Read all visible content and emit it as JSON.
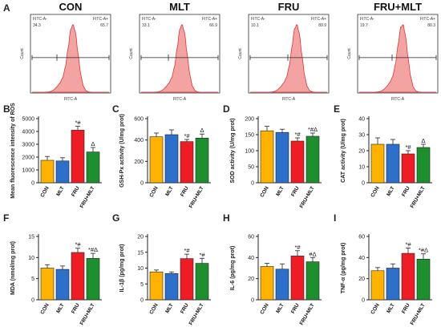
{
  "figure": {
    "colors": {
      "CON": "#FFB300",
      "MLT": "#2E6FC9",
      "FRU": "#EE1C25",
      "FRU+MLT": "#1E8F2E",
      "flow_fill": "#F4A3A3",
      "flow_line": "#D93636"
    },
    "categories": [
      "CON",
      "MLT",
      "FRU",
      "FRU+MLT"
    ]
  },
  "flow_panels": {
    "letter": "A",
    "x_axis_label": "FITC-A",
    "y_axis_label": "Count",
    "neg_label": "FITC-A-",
    "pos_label": "FITC-A+",
    "groups": [
      {
        "title": "CON",
        "neg_value": "34.3",
        "pos_value": "65.7"
      },
      {
        "title": "MLT",
        "neg_value": "33.1",
        "pos_value": "66.9"
      },
      {
        "title": "FRU",
        "neg_value": "10.1",
        "pos_value": "89.9"
      },
      {
        "title": "FRU+MLT",
        "neg_value": "19.7",
        "pos_value": "80.3"
      }
    ]
  },
  "chart_data": [
    {
      "panel": "B",
      "type": "bar",
      "ylabel": "Mean fluorescence intensity of ROS",
      "categories": [
        "CON",
        "MLT",
        "FRU",
        "FRU+MLT"
      ],
      "values": [
        1750,
        1700,
        4100,
        2400
      ],
      "errors": [
        300,
        250,
        300,
        350
      ],
      "annotations": [
        "",
        "",
        "*#",
        "Δ"
      ],
      "ylim": [
        0,
        5000
      ],
      "yticks": [
        0,
        1000,
        2000,
        3000,
        4000,
        5000
      ]
    },
    {
      "panel": "C",
      "type": "bar",
      "ylabel": "GSH-Px activity (U/mg prot)",
      "categories": [
        "CON",
        "MLT",
        "FRU",
        "FRU+MLT"
      ],
      "values": [
        430,
        450,
        385,
        418
      ],
      "errors": [
        35,
        45,
        20,
        38
      ],
      "annotations": [
        "",
        "",
        "*#",
        "Δ"
      ],
      "ylim": [
        0,
        600
      ],
      "yticks": [
        0,
        200,
        400,
        600
      ]
    },
    {
      "panel": "D",
      "type": "bar",
      "ylabel": "SOD activity (U/mg prot)",
      "categories": [
        "CON",
        "MLT",
        "FRU",
        "FRU+MLT"
      ],
      "values": [
        162,
        157,
        130,
        145
      ],
      "errors": [
        14,
        10,
        10,
        10
      ],
      "annotations": [
        "",
        "",
        "*#",
        "*#Δ"
      ],
      "ylim": [
        0,
        200
      ],
      "yticks": [
        0,
        50,
        100,
        150,
        200
      ]
    },
    {
      "panel": "E",
      "type": "bar",
      "ylabel": "CAT activity (U/mg prot)",
      "categories": [
        "CON",
        "MLT",
        "FRU",
        "FRU+MLT"
      ],
      "values": [
        24,
        24,
        18,
        22
      ],
      "errors": [
        4,
        3,
        2,
        2
      ],
      "annotations": [
        "",
        "",
        "*#",
        "Δ"
      ],
      "ylim": [
        0,
        40
      ],
      "yticks": [
        0,
        10,
        20,
        30,
        40
      ]
    },
    {
      "panel": "F",
      "type": "bar",
      "ylabel": "MDA (nmol/mg prot)",
      "categories": [
        "CON",
        "MLT",
        "FRU",
        "FRU+MLT"
      ],
      "values": [
        7.5,
        7.2,
        11.2,
        9.8
      ],
      "errors": [
        0.8,
        0.8,
        1.0,
        1.2
      ],
      "annotations": [
        "",
        "",
        "*#",
        "*#Δ"
      ],
      "ylim": [
        0,
        15
      ],
      "yticks": [
        0,
        5,
        10,
        15
      ]
    },
    {
      "panel": "G",
      "type": "bar",
      "ylabel": "IL-1β (pg/mg prot)",
      "categories": [
        "CON",
        "MLT",
        "FRU",
        "FRU+MLT"
      ],
      "values": [
        8.8,
        8.3,
        13.0,
        11.5
      ],
      "errors": [
        0.6,
        0.5,
        1.4,
        1.6
      ],
      "annotations": [
        "",
        "",
        "*#",
        "*#"
      ],
      "ylim": [
        0,
        20
      ],
      "yticks": [
        0,
        5,
        10,
        15,
        20
      ]
    },
    {
      "panel": "H",
      "type": "bar",
      "ylabel": "IL-6 (pg/mg prot)",
      "categories": [
        "CON",
        "MLT",
        "FRU",
        "FRU+MLT"
      ],
      "values": [
        31.5,
        29,
        41.5,
        36
      ],
      "errors": [
        3,
        5,
        5,
        4
      ],
      "annotations": [
        "",
        "",
        "*#",
        "#Δ"
      ],
      "ylim": [
        0,
        60
      ],
      "yticks": [
        0,
        20,
        40,
        60
      ]
    },
    {
      "panel": "I",
      "type": "bar",
      "ylabel": "TNF-α (pg/mg prot)",
      "categories": [
        "CON",
        "MLT",
        "FRU",
        "FRU+MLT"
      ],
      "values": [
        27.5,
        30,
        44,
        38.5
      ],
      "errors": [
        3,
        4,
        5,
        5
      ],
      "annotations": [
        "",
        "",
        "*#",
        "*#Δ"
      ],
      "ylim": [
        0,
        60
      ],
      "yticks": [
        0,
        20,
        40,
        60
      ]
    }
  ]
}
